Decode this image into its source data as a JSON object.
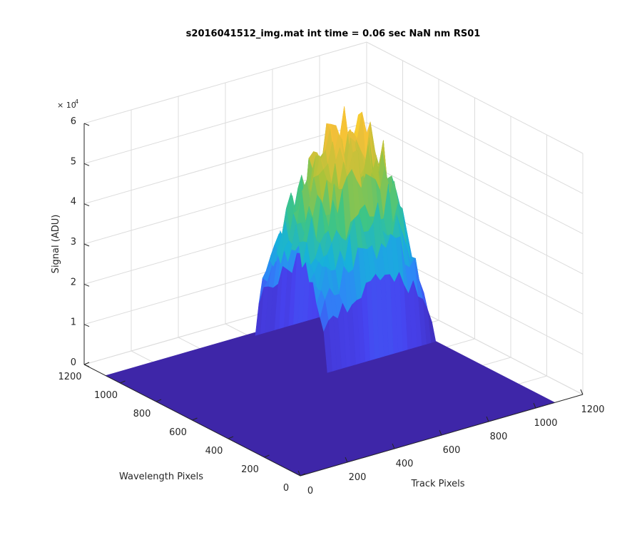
{
  "figure": {
    "title": "s2016041512_img.mat int time = 0.06 sec  NaN nm RS01"
  },
  "chart_data": {
    "type": "surface",
    "title": "s2016041512_img.mat int time = 0.06 sec  NaN nm RS01",
    "xlabel": "Track Pixels",
    "ylabel": "Wavelength Pixels",
    "zlabel": "Signal (ADU)",
    "z_exponent_label": "× 10",
    "z_exponent_power": "4",
    "xlim": [
      0,
      1200
    ],
    "ylim": [
      0,
      1200
    ],
    "zlim": [
      0,
      60000
    ],
    "x_ticks": [
      0,
      200,
      400,
      600,
      800,
      1000,
      1200
    ],
    "y_ticks": [
      0,
      200,
      400,
      600,
      800,
      1000,
      1200
    ],
    "z_ticks": [
      0,
      1,
      2,
      3,
      4,
      5,
      6
    ],
    "x_tick_labels": [
      "0",
      "200",
      "400",
      "600",
      "800",
      "1000",
      "1200"
    ],
    "y_tick_labels": [
      "0",
      "200",
      "400",
      "600",
      "800",
      "1000",
      "1200"
    ],
    "z_tick_labels": [
      "0",
      "1",
      "2",
      "3",
      "4",
      "5",
      "6"
    ],
    "grid": true,
    "data_extent": {
      "x": [
        0,
        1080
      ],
      "y": [
        0,
        1080
      ]
    },
    "signal_region": {
      "x_range": [
        620,
        1080
      ],
      "y_range": [
        660,
        1060
      ],
      "peak_z": 58000,
      "description_values": {
        "x_profile": [
          620,
          680,
          740,
          800,
          860,
          920,
          980,
          1040,
          1080
        ],
        "peak_by_x": [
          30000,
          42000,
          50000,
          55000,
          58000,
          56000,
          50000,
          34000,
          12000
        ]
      }
    },
    "colormap": [
      "#3e26a8",
      "#4743f0",
      "#2e87f7",
      "#17b2d9",
      "#3fc584",
      "#a8c33a",
      "#f6bf39",
      "#f9fb15"
    ]
  }
}
